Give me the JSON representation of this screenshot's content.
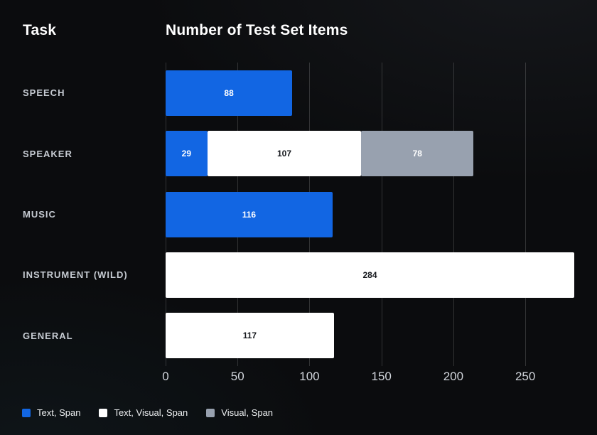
{
  "header": {
    "task_label": "Task",
    "chart_title": "Number of Test Set Items"
  },
  "chart_data": {
    "type": "bar",
    "orientation": "horizontal",
    "stacked": true,
    "title": "Number of Test Set Items",
    "categories": [
      "SPEECH",
      "SPEAKER",
      "MUSIC",
      "INSTRUMENT (WILD)",
      "GENERAL"
    ],
    "series": [
      {
        "name": "Text, Span",
        "color": "#1266e3",
        "values": [
          88,
          29,
          116,
          0,
          0
        ]
      },
      {
        "name": "Text, Visual, Span",
        "color": "#ffffff",
        "values": [
          0,
          107,
          0,
          284,
          117
        ]
      },
      {
        "name": "Visual, Span",
        "color": "#98a1af",
        "values": [
          0,
          78,
          0,
          0,
          0
        ]
      }
    ],
    "xticks": [
      0,
      50,
      100,
      150,
      200,
      250
    ],
    "xlim": [
      0,
      285
    ],
    "grid": true,
    "legend_position": "bottom-left",
    "value_labels": true
  },
  "colors": {
    "background": "#0b0c0e",
    "grid_line": "rgba(255,255,255,0.16)",
    "category_label": "#c6cbd2",
    "tick_label": "#d2d6dc",
    "title_text": "#ffffff",
    "value_on_dark": "#ffffff",
    "value_on_light": "#15181d"
  }
}
